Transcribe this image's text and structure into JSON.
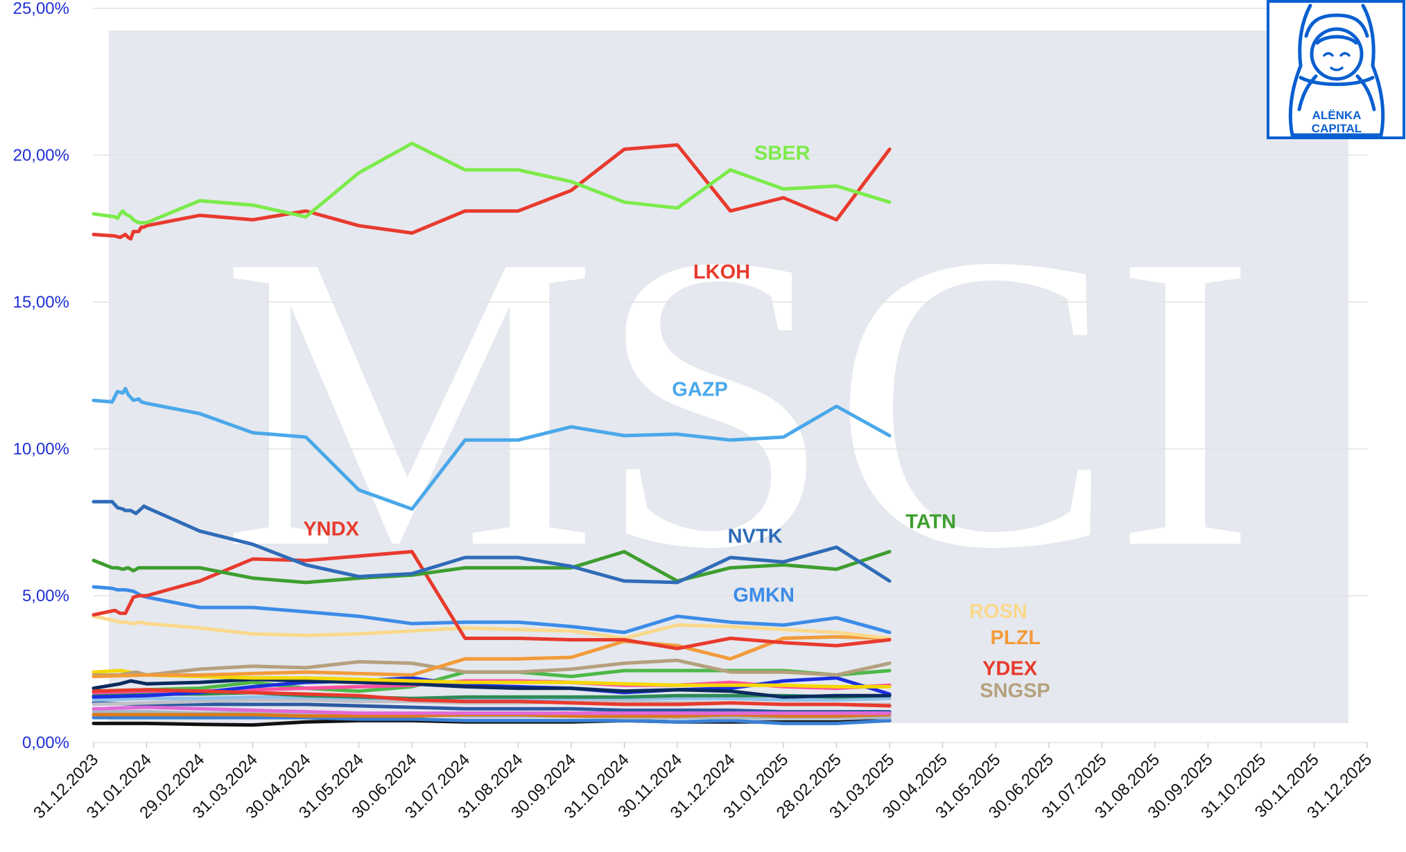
{
  "watermark": "MSCI",
  "logo": {
    "line1": "ALËNKA",
    "line2": "CAPITAL",
    "color": "#0a5fd0"
  },
  "chart_data": {
    "type": "line",
    "title": "",
    "xlabel": "",
    "ylabel": "",
    "ylim": [
      0,
      25
    ],
    "grid": true,
    "yticks": [
      0,
      5,
      10,
      15,
      20,
      25
    ],
    "ytick_labels": [
      "0,00%",
      "5,00%",
      "10,00%",
      "15,00%",
      "20,00%",
      "25,00%"
    ],
    "xticks": [
      "31.12.2023",
      "31.01.2024",
      "29.02.2024",
      "31.03.2024",
      "30.04.2024",
      "31.05.2024",
      "30.06.2024",
      "31.07.2024",
      "31.08.2024",
      "30.09.2024",
      "31.10.2024",
      "30.11.2024",
      "31.12.2024",
      "31.01.2025",
      "28.02.2025",
      "31.03.2025",
      "30.04.2025",
      "31.05.2025",
      "30.06.2025",
      "31.07.2025",
      "31.08.2025",
      "30.09.2025",
      "31.10.2025",
      "30.11.2025",
      "31.12.2025"
    ],
    "x_units": "month index (0 = 31.12.2023)",
    "series": [
      {
        "name": "SBER",
        "color": "#7CEB4B",
        "label_at": [
          12.45,
          19.85
        ],
        "x": [
          0,
          0.4,
          0.45,
          0.5,
          0.55,
          0.6,
          0.65,
          0.7,
          0.75,
          0.85,
          0.95,
          1.0,
          2,
          3,
          4,
          5,
          6,
          7,
          8,
          9,
          10,
          11,
          12,
          13,
          14,
          15
        ],
        "y": [
          18.0,
          17.9,
          17.85,
          18.0,
          18.1,
          18.0,
          17.95,
          17.9,
          17.8,
          17.7,
          17.7,
          17.7,
          18.45,
          18.3,
          17.9,
          19.4,
          20.4,
          19.5,
          19.5,
          19.1,
          18.4,
          18.2,
          19.5,
          18.85,
          18.95,
          18.4
        ]
      },
      {
        "name": "LKOH",
        "color": "#E83A2E",
        "label_at": [
          11.3,
          15.8
        ],
        "x": [
          0,
          0.4,
          0.5,
          0.6,
          0.65,
          0.7,
          0.75,
          0.85,
          0.9,
          0.95,
          1.0,
          2,
          3,
          4,
          5,
          6,
          7,
          8,
          9,
          10,
          11,
          12,
          13,
          14,
          15
        ],
        "y": [
          17.3,
          17.25,
          17.2,
          17.3,
          17.2,
          17.15,
          17.4,
          17.4,
          17.55,
          17.55,
          17.6,
          17.95,
          17.8,
          18.1,
          17.6,
          17.35,
          18.1,
          18.1,
          18.8,
          20.2,
          20.35,
          18.1,
          18.55,
          17.8,
          20.2
        ]
      },
      {
        "name": "GAZP",
        "color": "#4AA8EA",
        "label_at": [
          10.9,
          11.8
        ],
        "x": [
          0,
          0.35,
          0.45,
          0.55,
          0.6,
          0.65,
          0.75,
          0.85,
          0.9,
          1.0,
          2,
          3,
          4,
          5,
          6,
          7,
          8,
          9,
          10,
          11,
          12,
          13,
          14,
          15
        ],
        "y": [
          11.65,
          11.6,
          11.95,
          11.9,
          12.05,
          11.85,
          11.65,
          11.7,
          11.6,
          11.55,
          11.2,
          10.55,
          10.4,
          8.6,
          7.95,
          10.3,
          10.3,
          10.75,
          10.45,
          10.5,
          10.3,
          10.4,
          11.45,
          10.45
        ]
      },
      {
        "name": "NVTK",
        "color": "#2F6BB8",
        "label_at": [
          11.95,
          6.8
        ],
        "x": [
          0,
          0.35,
          0.45,
          0.55,
          0.6,
          0.7,
          0.8,
          0.95,
          1.0,
          2,
          3,
          4,
          5,
          6,
          7,
          8,
          9,
          10,
          11,
          12,
          13,
          14,
          15
        ],
        "y": [
          8.2,
          8.2,
          8.0,
          7.95,
          7.9,
          7.9,
          7.8,
          8.05,
          8.0,
          7.2,
          6.75,
          6.05,
          5.65,
          5.75,
          6.3,
          6.3,
          6.0,
          5.5,
          5.45,
          6.3,
          6.15,
          6.65,
          5.5
        ]
      },
      {
        "name": "TATN",
        "color": "#3E9E2F",
        "label_at": [
          15.3,
          7.3
        ],
        "x": [
          0,
          0.35,
          0.45,
          0.55,
          0.65,
          0.75,
          0.85,
          1.0,
          2,
          3,
          4,
          5,
          6,
          7,
          8,
          9,
          10,
          11,
          12,
          13,
          14,
          15
        ],
        "y": [
          6.2,
          5.95,
          5.95,
          5.9,
          5.95,
          5.85,
          5.95,
          5.95,
          5.95,
          5.6,
          5.45,
          5.6,
          5.7,
          5.95,
          5.95,
          5.95,
          6.5,
          5.5,
          5.95,
          6.05,
          5.9,
          6.5
        ]
      },
      {
        "name": "YNDX",
        "color": "#E83A2E",
        "label_at": [
          3.95,
          7.05
        ],
        "x": [
          0,
          0.4,
          0.5,
          0.6,
          0.75,
          0.85,
          0.9,
          1.0,
          2,
          3,
          4,
          6,
          7,
          8,
          9,
          10,
          11,
          12,
          13,
          14,
          15
        ],
        "y": [
          4.35,
          4.5,
          4.4,
          4.4,
          4.95,
          5.0,
          5.0,
          5.0,
          5.5,
          6.25,
          6.2,
          6.5,
          3.55,
          3.55,
          3.5,
          3.5,
          3.2,
          3.55,
          3.4,
          3.3,
          3.5
        ]
      },
      {
        "name": "GMKN",
        "color": "#3C8CE8",
        "label_at": [
          12.05,
          4.8
        ],
        "x": [
          0,
          0.35,
          0.45,
          0.6,
          0.75,
          0.9,
          1.0,
          2,
          3,
          4,
          5,
          6,
          7,
          8,
          9,
          10,
          11,
          12,
          13,
          14,
          15
        ],
        "y": [
          5.3,
          5.25,
          5.2,
          5.2,
          5.15,
          5.0,
          4.95,
          4.6,
          4.6,
          4.45,
          4.3,
          4.05,
          4.1,
          4.1,
          3.95,
          3.75,
          4.3,
          4.1,
          4.0,
          4.25,
          3.75
        ]
      },
      {
        "name": "ROSN",
        "color": "#FAD98C",
        "label_at": [
          16.5,
          4.25
        ],
        "x": [
          0,
          0.4,
          0.5,
          0.6,
          0.75,
          0.9,
          1.0,
          2,
          3,
          4,
          5,
          6,
          7,
          8,
          9,
          10,
          11,
          12,
          13,
          14,
          15
        ],
        "y": [
          4.3,
          4.15,
          4.1,
          4.1,
          4.05,
          4.1,
          4.05,
          3.9,
          3.7,
          3.65,
          3.7,
          3.8,
          3.9,
          3.85,
          3.8,
          3.55,
          4.0,
          3.95,
          3.85,
          3.75,
          3.55
        ]
      },
      {
        "name": "PLZL",
        "color": "#F29B3A",
        "label_at": [
          16.9,
          3.35
        ],
        "x": [
          0,
          1,
          2,
          3,
          4,
          5,
          6,
          7,
          8,
          9,
          10,
          11,
          12,
          13,
          14,
          15
        ],
        "y": [
          2.25,
          2.3,
          2.3,
          2.35,
          2.4,
          2.35,
          2.3,
          2.85,
          2.85,
          2.9,
          3.45,
          3.3,
          2.85,
          3.55,
          3.6,
          3.55
        ]
      },
      {
        "name": "YDEX",
        "color": "#E83A2E",
        "label_at": [
          16.75,
          2.3
        ],
        "x": [
          0,
          1,
          2,
          3,
          4,
          5,
          6,
          7,
          8,
          9,
          10,
          11,
          12,
          13,
          14,
          15
        ],
        "y": [
          1.75,
          1.8,
          1.75,
          1.7,
          1.65,
          1.6,
          1.45,
          1.4,
          1.4,
          1.35,
          1.3,
          1.3,
          1.35,
          1.3,
          1.3,
          1.25
        ]
      },
      {
        "name": "SNGSP",
        "color": "#B5A07E",
        "label_at": [
          16.7,
          1.55
        ],
        "x": [
          0,
          0.5,
          0.8,
          1,
          2,
          3,
          4,
          5,
          6,
          7,
          8,
          9,
          10,
          11,
          12,
          13,
          14,
          15
        ],
        "y": [
          2.3,
          2.3,
          2.4,
          2.3,
          2.5,
          2.6,
          2.55,
          2.75,
          2.7,
          2.4,
          2.4,
          2.5,
          2.7,
          2.8,
          2.4,
          2.4,
          2.3,
          2.7
        ]
      },
      {
        "name": "",
        "color": "#F5D800",
        "x": [
          0,
          0.5,
          1,
          2,
          3,
          4,
          5,
          6,
          7,
          8,
          9,
          10,
          11,
          12,
          13,
          14,
          15
        ],
        "y": [
          2.4,
          2.45,
          2.3,
          2.25,
          2.2,
          2.2,
          2.15,
          2.1,
          2.05,
          2.05,
          2.05,
          2.0,
          1.95,
          1.95,
          1.95,
          1.9,
          1.9
        ]
      },
      {
        "name": "",
        "color": "#0B2A5E",
        "x": [
          0,
          0.5,
          0.7,
          1,
          2,
          3,
          4,
          5,
          6,
          7,
          8,
          9,
          10,
          11,
          12,
          13,
          14,
          15
        ],
        "y": [
          1.85,
          2.0,
          2.1,
          2.0,
          2.05,
          2.15,
          2.1,
          2.05,
          2.0,
          1.9,
          1.85,
          1.85,
          1.75,
          1.8,
          1.75,
          1.55,
          1.6,
          1.6
        ]
      },
      {
        "name": "",
        "color": "#1B2FE0",
        "x": [
          0,
          1,
          2,
          3,
          4,
          5,
          6,
          7,
          8,
          9,
          10,
          11,
          12,
          13,
          14,
          15
        ],
        "y": [
          1.55,
          1.6,
          1.7,
          1.9,
          2.05,
          2.1,
          2.2,
          1.95,
          1.9,
          1.85,
          1.7,
          1.8,
          1.85,
          2.1,
          2.2,
          1.65
        ]
      },
      {
        "name": "",
        "color": "#FF4FA0",
        "x": [
          0,
          1,
          2,
          3,
          4,
          5,
          6,
          7,
          8,
          9,
          10,
          11,
          12,
          13,
          14,
          15
        ],
        "y": [
          1.7,
          1.75,
          1.75,
          1.8,
          1.85,
          1.9,
          1.95,
          2.1,
          2.1,
          2.05,
          1.95,
          1.95,
          2.05,
          1.9,
          1.85,
          1.95
        ]
      },
      {
        "name": "",
        "color": "#4DB848",
        "x": [
          0,
          1,
          2,
          3,
          4,
          5,
          6,
          7,
          8,
          9,
          10,
          11,
          12,
          13,
          14,
          15
        ],
        "y": [
          1.75,
          1.8,
          1.85,
          2.05,
          1.85,
          1.75,
          1.9,
          2.4,
          2.4,
          2.25,
          2.45,
          2.45,
          2.45,
          2.45,
          2.3,
          2.45
        ]
      },
      {
        "name": "",
        "color": "#2E8B57",
        "x": [
          0,
          1,
          2,
          3,
          4,
          5,
          6,
          7,
          8,
          9,
          10,
          11,
          12,
          13,
          14,
          15
        ],
        "y": [
          1.6,
          1.65,
          1.65,
          1.7,
          1.6,
          1.55,
          1.5,
          1.55,
          1.55,
          1.55,
          1.55,
          1.6,
          1.6,
          1.6,
          1.55,
          1.6
        ]
      },
      {
        "name": "",
        "color": "#8EC1EA",
        "x": [
          0,
          1,
          2,
          3,
          4,
          5,
          6,
          7,
          8,
          9,
          10,
          11,
          12,
          13,
          14,
          15
        ],
        "y": [
          1.45,
          1.5,
          1.5,
          1.55,
          1.55,
          1.5,
          1.5,
          1.45,
          1.45,
          1.5,
          1.5,
          1.5,
          1.5,
          1.45,
          1.45,
          1.5
        ]
      },
      {
        "name": "",
        "color": "#C0C0C8",
        "x": [
          0,
          1,
          2,
          3,
          4,
          5,
          6,
          7,
          8,
          9,
          10,
          11,
          12,
          13,
          14,
          15
        ],
        "y": [
          1.3,
          1.35,
          1.4,
          1.45,
          1.45,
          1.4,
          1.4,
          1.35,
          1.35,
          1.4,
          1.4,
          1.35,
          1.35,
          1.3,
          1.3,
          1.3
        ]
      },
      {
        "name": "",
        "color": "#E06AD8",
        "x": [
          0,
          1,
          2,
          3,
          4,
          5,
          6,
          7,
          8,
          9,
          10,
          11,
          12,
          13,
          14,
          15
        ],
        "y": [
          1.15,
          1.2,
          1.15,
          1.1,
          1.05,
          1.0,
          1.0,
          1.0,
          1.0,
          1.0,
          1.0,
          1.0,
          1.0,
          1.0,
          1.0,
          1.0
        ]
      },
      {
        "name": "",
        "color": "#2C5AA0",
        "x": [
          0,
          1,
          2,
          3,
          4,
          5,
          6,
          7,
          8,
          9,
          10,
          11,
          12,
          13,
          14,
          15
        ],
        "y": [
          1.35,
          1.3,
          1.3,
          1.3,
          1.3,
          1.25,
          1.2,
          1.15,
          1.15,
          1.15,
          1.1,
          1.1,
          1.1,
          1.05,
          1.05,
          1.05
        ]
      },
      {
        "name": "",
        "color": "#D97A1E",
        "x": [
          0,
          1,
          2,
          3,
          4,
          5,
          6,
          7,
          8,
          9,
          10,
          11,
          12,
          13,
          14,
          15
        ],
        "y": [
          0.95,
          0.95,
          0.95,
          0.95,
          0.9,
          0.9,
          0.9,
          0.95,
          0.95,
          0.9,
          0.9,
          0.9,
          0.95,
          0.9,
          0.9,
          0.95
        ]
      },
      {
        "name": "",
        "color": "#A7B8C8",
        "x": [
          0,
          1,
          2,
          3,
          4,
          5,
          6,
          7,
          8,
          9,
          10,
          11,
          12,
          13,
          14,
          15
        ],
        "y": [
          1.05,
          1.05,
          1.0,
          1.0,
          1.0,
          0.95,
          0.95,
          0.9,
          0.9,
          0.9,
          0.85,
          0.85,
          0.85,
          0.85,
          0.85,
          0.85
        ]
      },
      {
        "name": "",
        "color": "#3A7FD5",
        "x": [
          0,
          1,
          2,
          3,
          4,
          5,
          6,
          7,
          8,
          9,
          10,
          11,
          12,
          13,
          14,
          15
        ],
        "y": [
          0.85,
          0.85,
          0.85,
          0.85,
          0.85,
          0.8,
          0.8,
          0.75,
          0.75,
          0.75,
          0.75,
          0.7,
          0.75,
          0.65,
          0.65,
          0.75
        ]
      },
      {
        "name": "",
        "color": "#111111",
        "x": [
          0,
          1,
          2,
          3,
          4,
          5,
          6,
          7,
          8,
          9,
          10,
          11,
          12,
          13,
          14,
          15
        ],
        "y": [
          0.65,
          0.65,
          0.62,
          0.6,
          0.7,
          0.75,
          0.75,
          0.7,
          0.7,
          0.7,
          0.75,
          0.7,
          0.7,
          0.7,
          0.7,
          0.75
        ]
      }
    ]
  }
}
